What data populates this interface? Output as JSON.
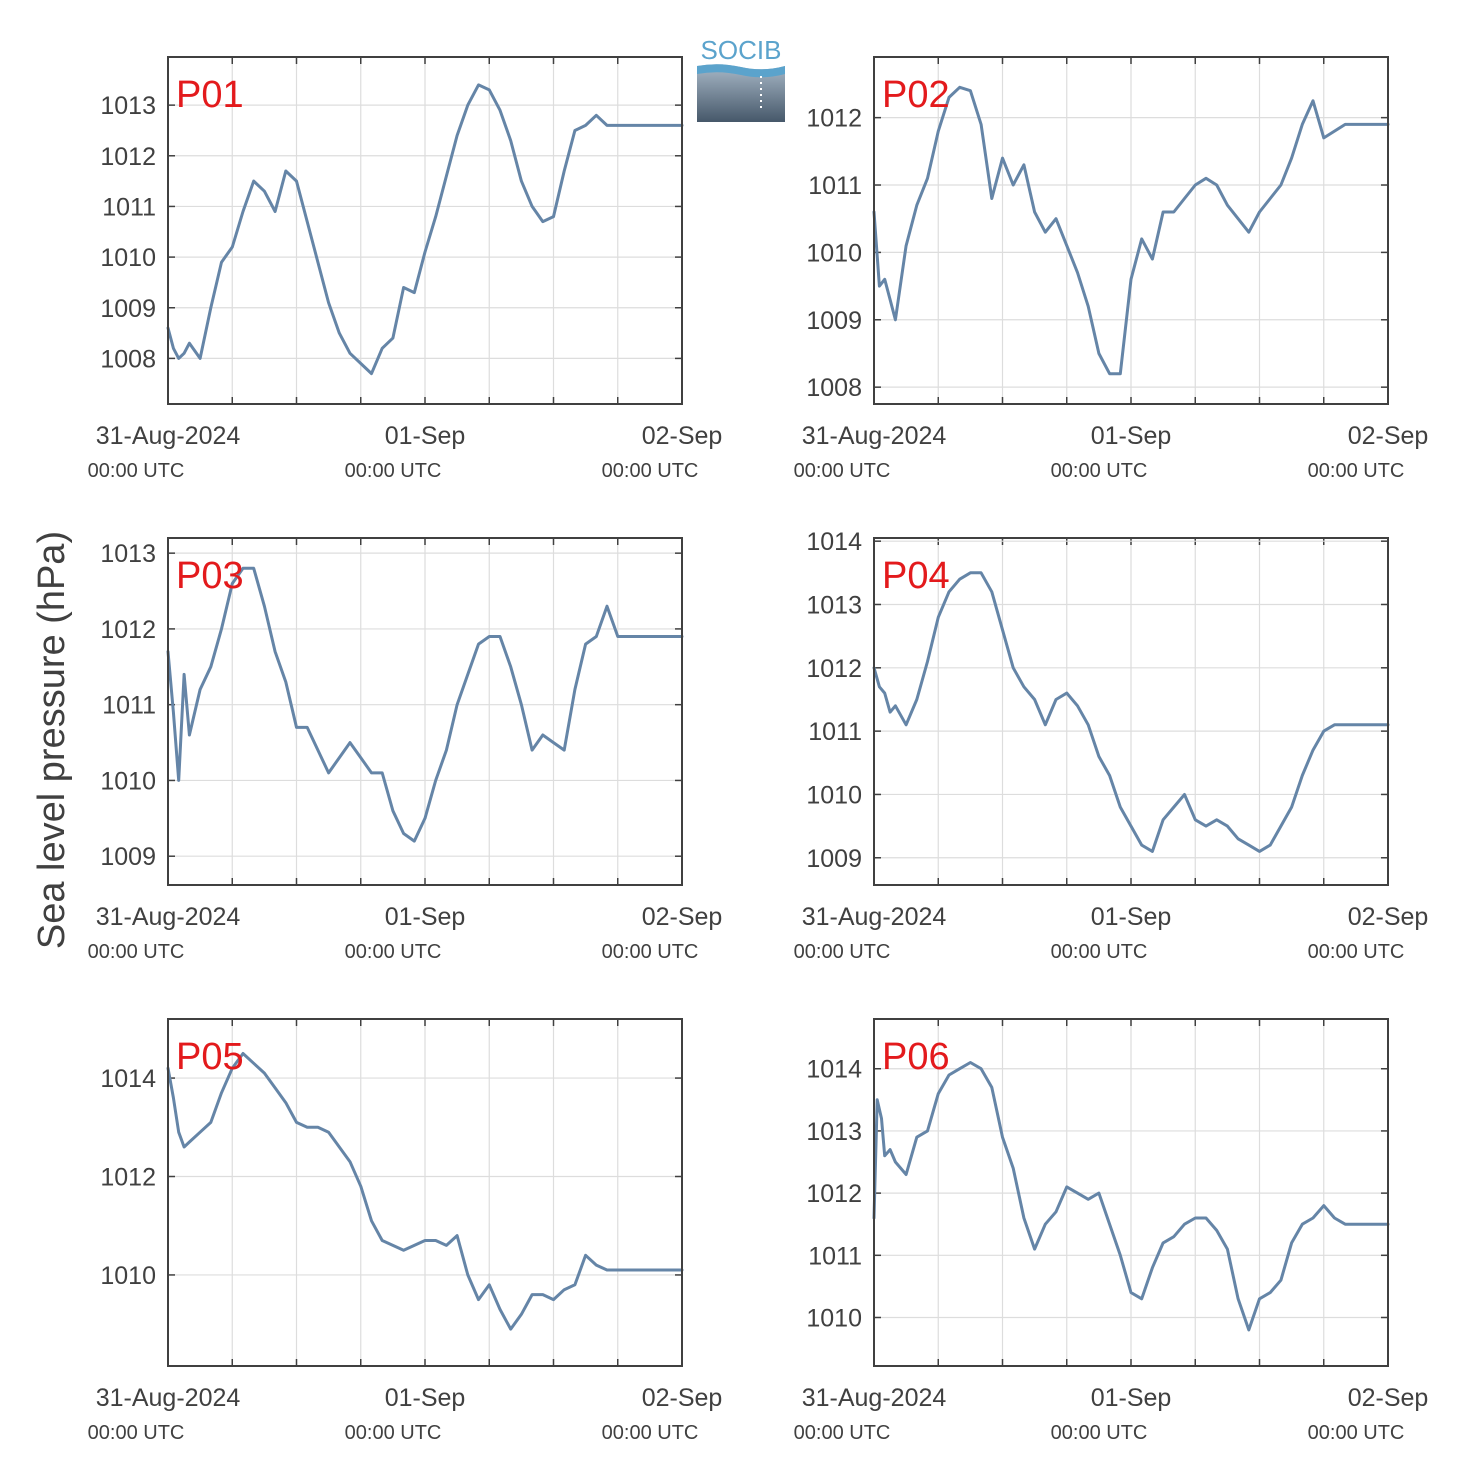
{
  "figure": {
    "ylabel": "Sea level pressure (hPa)",
    "logo_text": "SOCIB",
    "colors": {
      "line": "#6585a7",
      "label": "#e31a1c",
      "grid": "#dddddd",
      "axis": "#404040",
      "text": "#404040"
    }
  },
  "chart_data": [
    {
      "type": "line",
      "title": "P01",
      "xticklabels": [
        "31-Aug-2024",
        "01-Sep",
        "02-Sep"
      ],
      "xticksublabels": [
        "00:00 UTC",
        "00:00 UTC",
        "00:00 UTC"
      ],
      "xlim": [
        0,
        48
      ],
      "ylim": [
        1007.1,
        1013.95
      ],
      "yticks": [
        1008,
        1009,
        1010,
        1011,
        1012,
        1013
      ],
      "x": [
        0,
        0.5,
        1,
        1.5,
        2,
        3,
        4,
        5,
        6,
        7,
        8,
        9,
        10,
        11,
        12,
        13,
        14,
        15,
        16,
        17,
        18,
        19,
        20,
        21,
        22,
        23,
        24,
        25,
        26,
        27,
        28,
        29,
        30,
        31,
        32,
        33,
        34,
        35,
        36,
        37,
        38,
        39,
        40,
        41,
        42,
        43,
        44,
        45,
        46,
        47,
        48
      ],
      "y": [
        1008.6,
        1008.2,
        1008.0,
        1008.1,
        1008.3,
        1008.0,
        1009.0,
        1009.9,
        1010.2,
        1010.9,
        1011.5,
        1011.3,
        1010.9,
        1011.7,
        1011.5,
        1010.7,
        1009.9,
        1009.1,
        1008.5,
        1008.1,
        1007.9,
        1007.7,
        1008.2,
        1008.4,
        1009.4,
        1009.3,
        1010.1,
        1010.8,
        1011.6,
        1012.4,
        1013.0,
        1013.4,
        1013.3,
        1012.9,
        1012.3,
        1011.5,
        1011.0,
        1010.7,
        1010.8,
        1011.7,
        1012.5,
        1012.6,
        1012.8,
        1012.6,
        1012.6,
        1012.6,
        1012.6,
        1012.6,
        1012.6,
        1012.6,
        1012.6
      ]
    },
    {
      "type": "line",
      "title": "P02",
      "xticklabels": [
        "31-Aug-2024",
        "01-Sep",
        "02-Sep"
      ],
      "xticksublabels": [
        "00:00 UTC",
        "00:00 UTC",
        "00:00 UTC"
      ],
      "xlim": [
        0,
        48
      ],
      "ylim": [
        1007.75,
        1012.9
      ],
      "yticks": [
        1008,
        1009,
        1010,
        1011,
        1012
      ],
      "x": [
        0,
        0.5,
        1,
        1.5,
        2,
        3,
        4,
        5,
        6,
        7,
        8,
        9,
        10,
        11,
        12,
        13,
        14,
        15,
        16,
        17,
        18,
        19,
        20,
        21,
        22,
        23,
        24,
        25,
        26,
        27,
        28,
        29,
        30,
        31,
        32,
        33,
        34,
        35,
        36,
        37,
        38,
        39,
        40,
        41,
        42,
        43,
        44,
        45,
        46,
        47,
        48
      ],
      "y": [
        1010.6,
        1009.5,
        1009.6,
        1009.3,
        1009.0,
        1010.1,
        1010.7,
        1011.1,
        1011.8,
        1012.3,
        1012.45,
        1012.4,
        1011.9,
        1010.8,
        1011.4,
        1011.0,
        1011.3,
        1010.6,
        1010.3,
        1010.5,
        1010.1,
        1009.7,
        1009.2,
        1008.5,
        1008.2,
        1008.2,
        1009.6,
        1010.2,
        1009.9,
        1010.6,
        1010.6,
        1010.8,
        1011.0,
        1011.1,
        1011.0,
        1010.7,
        1010.5,
        1010.3,
        1010.6,
        1010.8,
        1011.0,
        1011.4,
        1011.9,
        1012.25,
        1011.7,
        1011.8,
        1011.9,
        1011.9,
        1011.9,
        1011.9,
        1011.9
      ]
    },
    {
      "type": "line",
      "title": "P03",
      "xticklabels": [
        "31-Aug-2024",
        "01-Sep",
        "02-Sep"
      ],
      "xticksublabels": [
        "00:00 UTC",
        "00:00 UTC",
        "00:00 UTC"
      ],
      "xlim": [
        0,
        48
      ],
      "ylim": [
        1008.62,
        1013.2
      ],
      "yticks": [
        1009,
        1010,
        1011,
        1012,
        1013
      ],
      "x": [
        0,
        0.5,
        1,
        1.5,
        2,
        3,
        4,
        5,
        6,
        7,
        8,
        9,
        10,
        11,
        12,
        13,
        14,
        15,
        16,
        17,
        18,
        19,
        20,
        21,
        22,
        23,
        24,
        25,
        26,
        27,
        28,
        29,
        30,
        31,
        32,
        33,
        34,
        35,
        36,
        37,
        38,
        39,
        40,
        41,
        42,
        43,
        44,
        45,
        46,
        47,
        48
      ],
      "y": [
        1011.7,
        1010.9,
        1010.0,
        1011.4,
        1010.6,
        1011.2,
        1011.5,
        1012.0,
        1012.6,
        1012.8,
        1012.8,
        1012.3,
        1011.7,
        1011.3,
        1010.7,
        1010.7,
        1010.4,
        1010.1,
        1010.3,
        1010.5,
        1010.3,
        1010.1,
        1010.1,
        1009.6,
        1009.3,
        1009.2,
        1009.5,
        1010.0,
        1010.4,
        1011.0,
        1011.4,
        1011.8,
        1011.9,
        1011.9,
        1011.5,
        1011.0,
        1010.4,
        1010.6,
        1010.5,
        1010.4,
        1011.2,
        1011.8,
        1011.9,
        1012.3,
        1011.9,
        1011.9,
        1011.9,
        1011.9,
        1011.9,
        1011.9,
        1011.9
      ]
    },
    {
      "type": "line",
      "title": "P04",
      "xticklabels": [
        "31-Aug-2024",
        "01-Sep",
        "02-Sep"
      ],
      "xticksublabels": [
        "00:00 UTC",
        "00:00 UTC",
        "00:00 UTC"
      ],
      "xlim": [
        0,
        48
      ],
      "ylim": [
        1008.57,
        1014.05
      ],
      "yticks": [
        1009,
        1010,
        1011,
        1012,
        1013,
        1014
      ],
      "x": [
        0,
        0.5,
        1,
        1.5,
        2,
        3,
        4,
        5,
        6,
        7,
        8,
        9,
        10,
        11,
        12,
        13,
        14,
        15,
        16,
        17,
        18,
        19,
        20,
        21,
        22,
        23,
        24,
        25,
        26,
        27,
        28,
        29,
        30,
        31,
        32,
        33,
        34,
        35,
        36,
        37,
        38,
        39,
        40,
        41,
        42,
        43,
        44,
        45,
        46,
        47,
        48
      ],
      "y": [
        1012.0,
        1011.7,
        1011.6,
        1011.3,
        1011.4,
        1011.1,
        1011.5,
        1012.1,
        1012.8,
        1013.2,
        1013.4,
        1013.5,
        1013.5,
        1013.2,
        1012.6,
        1012.0,
        1011.7,
        1011.5,
        1011.1,
        1011.5,
        1011.6,
        1011.4,
        1011.1,
        1010.6,
        1010.3,
        1009.8,
        1009.5,
        1009.2,
        1009.1,
        1009.6,
        1009.8,
        1010.0,
        1009.6,
        1009.5,
        1009.6,
        1009.5,
        1009.3,
        1009.2,
        1009.1,
        1009.2,
        1009.5,
        1009.8,
        1010.3,
        1010.7,
        1011.0,
        1011.1,
        1011.1,
        1011.1,
        1011.1,
        1011.1,
        1011.1
      ]
    },
    {
      "type": "line",
      "title": "P05",
      "xticklabels": [
        "31-Aug-2024",
        "01-Sep",
        "02-Sep"
      ],
      "xticksublabels": [
        "00:00 UTC",
        "00:00 UTC",
        "00:00 UTC"
      ],
      "xlim": [
        0,
        48
      ],
      "ylim": [
        1008.15,
        1015.2
      ],
      "yticks": [
        1010,
        1012,
        1014
      ],
      "x": [
        0,
        0.5,
        1,
        1.5,
        2,
        3,
        4,
        5,
        6,
        7,
        8,
        9,
        10,
        11,
        12,
        13,
        14,
        15,
        16,
        17,
        18,
        19,
        20,
        21,
        22,
        23,
        24,
        25,
        26,
        27,
        28,
        29,
        30,
        31,
        32,
        33,
        34,
        35,
        36,
        37,
        38,
        39,
        40,
        41,
        42,
        43,
        44,
        45,
        46,
        47,
        48
      ],
      "y": [
        1014.2,
        1013.6,
        1012.9,
        1012.6,
        1012.7,
        1012.9,
        1013.1,
        1013.7,
        1014.2,
        1014.5,
        1014.3,
        1014.1,
        1013.8,
        1013.5,
        1013.1,
        1013.0,
        1013.0,
        1012.9,
        1012.6,
        1012.3,
        1011.8,
        1011.1,
        1010.7,
        1010.6,
        1010.5,
        1010.6,
        1010.7,
        1010.7,
        1010.6,
        1010.8,
        1010.0,
        1009.5,
        1009.8,
        1009.3,
        1008.9,
        1009.2,
        1009.6,
        1009.6,
        1009.5,
        1009.7,
        1009.8,
        1010.4,
        1010.2,
        1010.1,
        1010.1,
        1010.1,
        1010.1,
        1010.1,
        1010.1,
        1010.1,
        1010.1
      ]
    },
    {
      "type": "line",
      "title": "P06",
      "xticklabels": [
        "31-Aug-2024",
        "01-Sep",
        "02-Sep"
      ],
      "xticksublabels": [
        "00:00 UTC",
        "00:00 UTC",
        "00:00 UTC"
      ],
      "xlim": [
        0,
        48
      ],
      "ylim": [
        1009.22,
        1014.8
      ],
      "yticks": [
        1010,
        1011,
        1012,
        1013,
        1014
      ],
      "x": [
        0,
        0.3,
        0.7,
        1,
        1.5,
        2,
        3,
        4,
        5,
        6,
        7,
        8,
        9,
        10,
        11,
        12,
        13,
        14,
        15,
        16,
        17,
        18,
        19,
        20,
        21,
        22,
        23,
        24,
        25,
        26,
        27,
        28,
        29,
        30,
        31,
        32,
        33,
        34,
        35,
        36,
        37,
        38,
        39,
        40,
        41,
        42,
        43,
        44,
        45,
        46,
        47,
        48
      ],
      "y": [
        1011.6,
        1013.5,
        1013.2,
        1012.6,
        1012.7,
        1012.5,
        1012.3,
        1012.9,
        1013.0,
        1013.6,
        1013.9,
        1014.0,
        1014.1,
        1014.0,
        1013.7,
        1012.9,
        1012.4,
        1011.6,
        1011.1,
        1011.5,
        1011.7,
        1012.1,
        1012.0,
        1011.9,
        1012.0,
        1011.5,
        1011.0,
        1010.4,
        1010.3,
        1010.8,
        1011.2,
        1011.3,
        1011.5,
        1011.6,
        1011.6,
        1011.4,
        1011.1,
        1010.3,
        1009.8,
        1010.3,
        1010.4,
        1010.6,
        1011.2,
        1011.5,
        1011.6,
        1011.8,
        1011.6,
        1011.5,
        1011.5,
        1011.5,
        1011.5,
        1011.5
      ]
    }
  ]
}
